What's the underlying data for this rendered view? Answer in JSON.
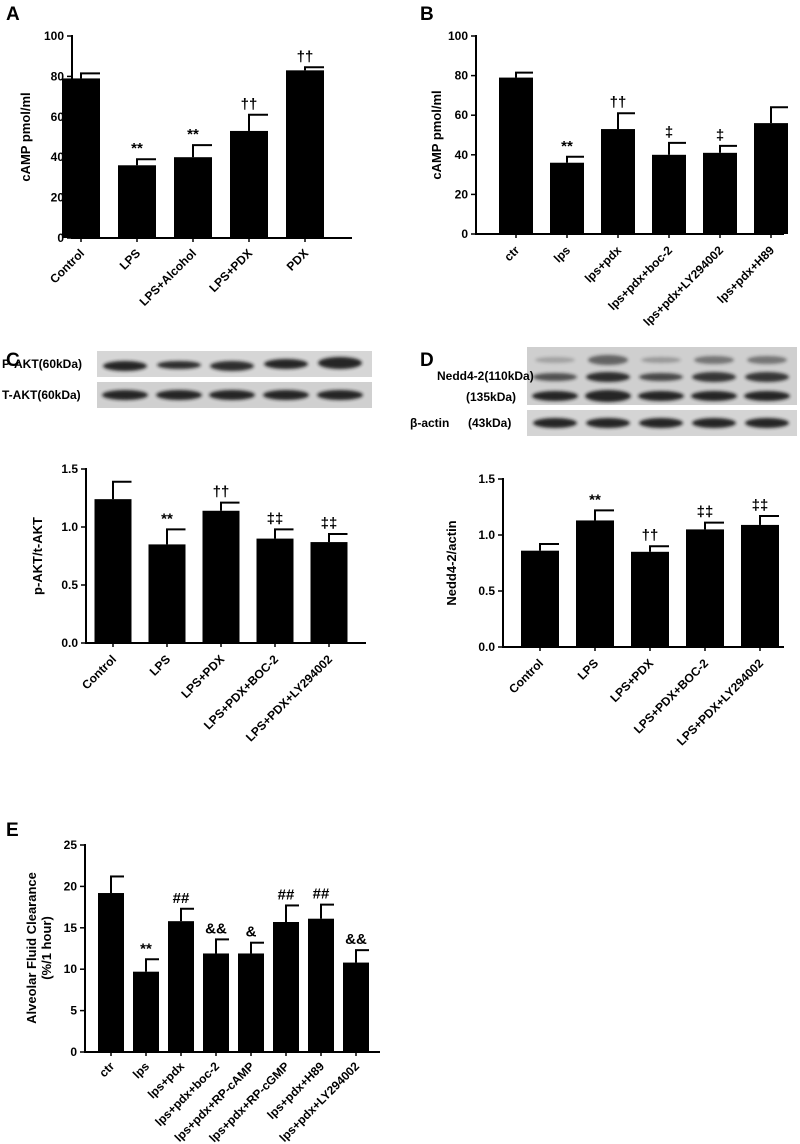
{
  "chart_data": [
    {
      "panel": "A",
      "type": "bar",
      "title": "",
      "xlabel": "",
      "ylabel": "cAMP pmol/ml",
      "ylim": [
        0,
        100
      ],
      "yticks": [
        "0",
        "20",
        "40",
        "60",
        "80",
        "100"
      ],
      "categories": [
        "Control",
        "LPS",
        "LPS+Alcohol",
        "LPS+PDX",
        "PDX"
      ],
      "values": [
        79,
        36,
        40,
        53,
        83
      ],
      "errors": [
        2.5,
        3,
        6,
        8,
        1.5
      ],
      "annotations": [
        "",
        "**",
        "**",
        "††",
        "††"
      ],
      "bar_color": "#000000",
      "grid": false
    },
    {
      "panel": "B",
      "type": "bar",
      "title": "",
      "xlabel": "",
      "ylabel": "cAMP pmol/ml",
      "ylim": [
        0,
        100
      ],
      "yticks": [
        "0",
        "20",
        "40",
        "60",
        "80",
        "100"
      ],
      "categories": [
        "ctr",
        "lps",
        "lps+pdx",
        "lps+pdx+boc-2",
        "lps+pdx+LY294002",
        "lps+pdx+H89"
      ],
      "values": [
        79,
        36,
        53,
        40,
        41,
        56
      ],
      "errors": [
        2.5,
        3,
        8,
        6,
        3.5,
        8
      ],
      "annotations": [
        "",
        "**",
        "††",
        "‡",
        "‡",
        ""
      ],
      "bar_color": "#000000",
      "grid": false
    },
    {
      "panel": "C",
      "type": "bar",
      "title": "",
      "xlabel": "",
      "ylabel": "p-AKT/t-AKT",
      "ylim": [
        0,
        1.5
      ],
      "yticks": [
        "0.0",
        "0.5",
        "1.0",
        "1.5"
      ],
      "categories": [
        "Control",
        "LPS",
        "LPS+PDX",
        "LPS+PDX+BOC-2",
        "LPS+PDX+LY294002"
      ],
      "values": [
        1.24,
        0.85,
        1.14,
        0.9,
        0.87
      ],
      "errors": [
        0.15,
        0.13,
        0.07,
        0.08,
        0.07
      ],
      "annotations": [
        "",
        "**",
        "††",
        "‡‡",
        "‡‡"
      ],
      "bar_color": "#000000",
      "grid": false,
      "blot_labels": [
        "P-AKT(60kDa)",
        "T-AKT(60kDa)"
      ]
    },
    {
      "panel": "D",
      "type": "bar",
      "title": "",
      "xlabel": "",
      "ylabel": "Nedd4-2/actin",
      "ylim": [
        0,
        1.5
      ],
      "yticks": [
        "0.0",
        "0.5",
        "1.0",
        "1.5"
      ],
      "categories": [
        "Control",
        "LPS",
        "LPS+PDX",
        "LPS+PDX+BOC-2",
        "LPS+PDX+LY294002"
      ],
      "values": [
        0.86,
        1.13,
        0.85,
        1.05,
        1.09
      ],
      "errors": [
        0.06,
        0.09,
        0.05,
        0.06,
        0.08
      ],
      "annotations": [
        "",
        "**",
        "††",
        "‡‡",
        "‡‡"
      ],
      "bar_color": "#000000",
      "grid": false,
      "blot_labels": [
        "Nedd4-2(110kDa)",
        "(135kDa)",
        "β-actin",
        "(43kDa)"
      ]
    },
    {
      "panel": "E",
      "type": "bar",
      "title": "",
      "xlabel": "",
      "ylabel": "Alveolar Fluid Clearance",
      "ylabel2": "(%/1  hour)",
      "ylim": [
        0,
        25
      ],
      "yticks": [
        "0",
        "5",
        "10",
        "15",
        "20",
        "25"
      ],
      "categories": [
        "ctr",
        "lps",
        "lps+pdx",
        "lps+pdx+boc-2",
        "lps+pdx+RP-cAMP",
        "lps+pdx+RP-cGMP",
        "lps+pdx+H89",
        "lps+pdx+LY294002"
      ],
      "values": [
        19.2,
        9.7,
        15.8,
        11.9,
        11.9,
        15.7,
        16.1,
        10.8
      ],
      "errors": [
        2,
        1.5,
        1.5,
        1.7,
        1.3,
        2,
        1.7,
        1.5
      ],
      "annotations": [
        "",
        "**",
        "##",
        "&&",
        "&",
        "##",
        "##",
        "&&"
      ],
      "bar_color": "#000000",
      "grid": false
    }
  ]
}
